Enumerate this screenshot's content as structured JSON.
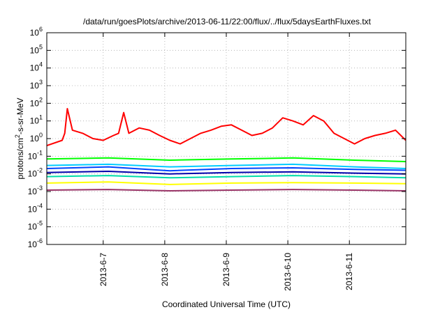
{
  "chart_data": {
    "type": "line",
    "title": "/data/run/goesPlots/archive/2013-06-11/22:00/flux/../flux/5daysEarthFluxes.txt",
    "xlabel": "Coordinated Universal Time (UTC)",
    "ylabel": {
      "prefix": "protons/cm",
      "superscript": "2",
      "suffix": "-s-sr-MeV"
    },
    "y_scale": "log",
    "ylim": [
      1e-06,
      1000000.0
    ],
    "y_ticks": [
      {
        "value": 1e-06,
        "base": "10",
        "exp": "-6"
      },
      {
        "value": 1e-05,
        "base": "10",
        "exp": "-5"
      },
      {
        "value": 0.0001,
        "base": "10",
        "exp": "-4"
      },
      {
        "value": 0.001,
        "base": "10",
        "exp": "-3"
      },
      {
        "value": 0.01,
        "base": "10",
        "exp": "-2"
      },
      {
        "value": 0.1,
        "base": "10",
        "exp": "-1"
      },
      {
        "value": 1.0,
        "base": "10",
        "exp": "0"
      },
      {
        "value": 10.0,
        "base": "10",
        "exp": "1"
      },
      {
        "value": 100.0,
        "base": "10",
        "exp": "2"
      },
      {
        "value": 1000.0,
        "base": "10",
        "exp": "3"
      },
      {
        "value": 10000.0,
        "base": "10",
        "exp": "4"
      },
      {
        "value": 100000.0,
        "base": "10",
        "exp": "5"
      },
      {
        "value": 1000000.0,
        "base": "10",
        "exp": "6"
      }
    ],
    "xlim": [
      "2013-06-06 02:00",
      "2013-06-11 22:00"
    ],
    "x_ticks": [
      "2013-6-7",
      "2013-6-8",
      "2013-6-9",
      "2013-6-10",
      "2013-6-11"
    ],
    "grid": true,
    "series": [
      {
        "color": "#ff0000",
        "x": [
          "2013-06-06 02:00",
          "2013-06-06 08:00",
          "2013-06-06 09:00",
          "2013-06-06 10:00",
          "2013-06-06 12:00",
          "2013-06-06 16:00",
          "2013-06-06 20:00",
          "2013-06-07 00:00",
          "2013-06-07 04:00",
          "2013-06-07 06:00",
          "2013-06-07 08:00",
          "2013-06-07 10:00",
          "2013-06-07 14:00",
          "2013-06-07 18:00",
          "2013-06-07 22:00",
          "2013-06-08 02:00",
          "2013-06-08 06:00",
          "2013-06-08 10:00",
          "2013-06-08 14:00",
          "2013-06-08 18:00",
          "2013-06-08 22:00",
          "2013-06-09 02:00",
          "2013-06-09 06:00",
          "2013-06-09 10:00",
          "2013-06-09 14:00",
          "2013-06-09 18:00",
          "2013-06-09 22:00",
          "2013-06-10 02:00",
          "2013-06-10 06:00",
          "2013-06-10 10:00",
          "2013-06-10 14:00",
          "2013-06-10 18:00",
          "2013-06-10 22:00",
          "2013-06-11 02:00",
          "2013-06-11 06:00",
          "2013-06-11 10:00",
          "2013-06-11 14:00",
          "2013-06-11 18:00",
          "2013-06-11 22:00"
        ],
        "values": [
          0.4,
          0.8,
          2,
          50,
          3,
          2,
          1,
          0.8,
          1.5,
          2,
          30,
          2,
          4,
          3,
          1.5,
          0.8,
          0.5,
          1,
          2,
          3,
          5,
          6,
          3,
          1.5,
          2,
          4,
          15,
          10,
          6,
          20,
          10,
          2,
          1,
          0.5,
          1,
          1.5,
          2,
          3,
          0.8
        ]
      },
      {
        "color": "#00ff00",
        "x": [
          "2013-06-06 02:00",
          "2013-06-07 02:00",
          "2013-06-08 02:00",
          "2013-06-09 02:00",
          "2013-06-10 02:00",
          "2013-06-11 02:00",
          "2013-06-11 22:00"
        ],
        "values": [
          0.07,
          0.08,
          0.06,
          0.07,
          0.08,
          0.06,
          0.05
        ]
      },
      {
        "color": "#00ccff",
        "x": [
          "2013-06-06 02:00",
          "2013-06-07 02:00",
          "2013-06-08 02:00",
          "2013-06-09 02:00",
          "2013-06-10 02:00",
          "2013-06-11 02:00",
          "2013-06-11 22:00"
        ],
        "values": [
          0.03,
          0.035,
          0.025,
          0.03,
          0.035,
          0.025,
          0.02
        ]
      },
      {
        "color": "#0044ff",
        "x": [
          "2013-06-06 02:00",
          "2013-06-07 02:00",
          "2013-06-08 02:00",
          "2013-06-09 02:00",
          "2013-06-10 02:00",
          "2013-06-11 02:00",
          "2013-06-11 22:00"
        ],
        "values": [
          0.02,
          0.025,
          0.015,
          0.02,
          0.022,
          0.018,
          0.016
        ]
      },
      {
        "color": "#0000aa",
        "x": [
          "2013-06-06 02:00",
          "2013-06-07 02:00",
          "2013-06-08 02:00",
          "2013-06-09 02:00",
          "2013-06-10 02:00",
          "2013-06-11 02:00",
          "2013-06-11 22:00"
        ],
        "values": [
          0.012,
          0.014,
          0.01,
          0.012,
          0.013,
          0.011,
          0.01
        ]
      },
      {
        "color": "#00ddaa",
        "x": [
          "2013-06-06 02:00",
          "2013-06-07 02:00",
          "2013-06-08 02:00",
          "2013-06-09 02:00",
          "2013-06-10 02:00",
          "2013-06-11 02:00",
          "2013-06-11 22:00"
        ],
        "values": [
          0.007,
          0.008,
          0.006,
          0.007,
          0.008,
          0.007,
          0.006
        ]
      },
      {
        "color": "#ffff00",
        "x": [
          "2013-06-06 02:00",
          "2013-06-07 02:00",
          "2013-06-08 02:00",
          "2013-06-09 02:00",
          "2013-06-10 02:00",
          "2013-06-11 02:00",
          "2013-06-11 22:00"
        ],
        "values": [
          0.003,
          0.0035,
          0.0025,
          0.003,
          0.0032,
          0.003,
          0.0028
        ]
      },
      {
        "color": "#993366",
        "x": [
          "2013-06-06 02:00",
          "2013-06-07 02:00",
          "2013-06-08 02:00",
          "2013-06-09 02:00",
          "2013-06-10 02:00",
          "2013-06-11 02:00",
          "2013-06-11 22:00"
        ],
        "values": [
          0.0012,
          0.0013,
          0.0011,
          0.0012,
          0.0013,
          0.0012,
          0.0011
        ]
      }
    ]
  }
}
